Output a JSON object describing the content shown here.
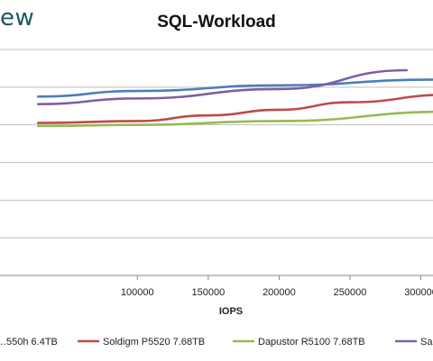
{
  "watermark": "ew",
  "chart_data": {
    "type": "line",
    "title": "SQL-Workload",
    "xlabel": "IOPS",
    "ylabel": "",
    "xlim": [
      30000,
      320000
    ],
    "ylim": [
      0,
      600
    ],
    "x_ticks": [
      100000,
      150000,
      200000,
      250000,
      300000
    ],
    "grid": true,
    "legend_placement": "bottom",
    "series": [
      {
        "name": "…550h 6.4TB",
        "color": "#4a7ebb",
        "x": [
          30000,
          100000,
          200000,
          310000
        ],
        "y": [
          475,
          490,
          505,
          520
        ]
      },
      {
        "name": "Soldigm P5520 7.68TB",
        "color": "#be4b48",
        "x": [
          30000,
          100000,
          150000,
          200000,
          250000,
          320000
        ],
        "y": [
          405,
          410,
          425,
          440,
          460,
          480
        ]
      },
      {
        "name": "Dapustor R5100 7.68TB",
        "color": "#98b954",
        "x": [
          30000,
          100000,
          200000,
          320000
        ],
        "y": [
          397,
          400,
          410,
          435
        ]
      },
      {
        "name": "Sa…",
        "color": "#7d60a0",
        "x": [
          30000,
          100000,
          200000,
          290000
        ],
        "y": [
          455,
          470,
          495,
          545
        ]
      }
    ]
  }
}
